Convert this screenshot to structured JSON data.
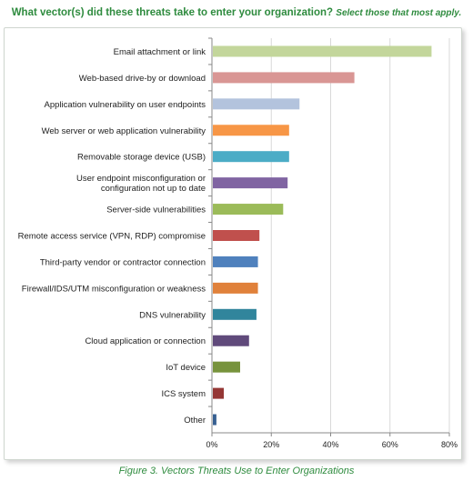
{
  "title": "What vector(s) did these threats take to enter your organization?",
  "subtitle": "Select those that most apply.",
  "caption": "Figure 3. Vectors Threats Use to Enter Organizations",
  "chart_data": {
    "type": "bar",
    "orientation": "horizontal",
    "xlim": [
      0,
      80
    ],
    "x_tick_labels": [
      "0%",
      "20%",
      "40%",
      "60%",
      "80%"
    ],
    "grid": true,
    "categories": [
      "Email attachment or link",
      "Web-based drive-by or download",
      "Application vulnerability on user endpoints",
      "Web server or web application vulnerability",
      "Removable storage device (USB)",
      "User endpoint misconfiguration or configuration not up to date",
      "Server-side vulnerabilities",
      "Remote access service (VPN, RDP) compromise",
      "Third-party vendor or contractor connection",
      "Firewall/IDS/UTM misconfiguration or weakness",
      "DNS vulnerability",
      "Cloud application or connection",
      "IoT device",
      "ICS system",
      "Other"
    ],
    "category_lines": [
      [
        "Email attachment or link"
      ],
      [
        "Web-based drive-by or download"
      ],
      [
        "Application vulnerability on user endpoints"
      ],
      [
        "Web server or web application vulnerability"
      ],
      [
        "Removable storage device (USB)"
      ],
      [
        "User endpoint misconfiguration or",
        "configuration not up to date"
      ],
      [
        "Server-side vulnerabilities"
      ],
      [
        "Remote access service (VPN, RDP) compromise"
      ],
      [
        "Third-party vendor or contractor connection"
      ],
      [
        "Firewall/IDS/UTM misconfiguration or weakness"
      ],
      [
        "DNS vulnerability"
      ],
      [
        "Cloud application or connection"
      ],
      [
        "IoT device"
      ],
      [
        "ICS system"
      ],
      [
        "Other"
      ]
    ],
    "values": [
      74.0,
      48.0,
      29.5,
      26.0,
      26.0,
      25.5,
      24.0,
      16.0,
      15.5,
      15.5,
      15.0,
      12.5,
      9.5,
      4.0,
      1.5
    ],
    "colors": [
      "#c3d69b",
      "#d99694",
      "#b3c3dd",
      "#f79646",
      "#4bacc6",
      "#8064a2",
      "#9bbb59",
      "#c0504d",
      "#4f81bd",
      "#e0813b",
      "#31859c",
      "#604a7b",
      "#77933c",
      "#953735",
      "#376092"
    ]
  }
}
